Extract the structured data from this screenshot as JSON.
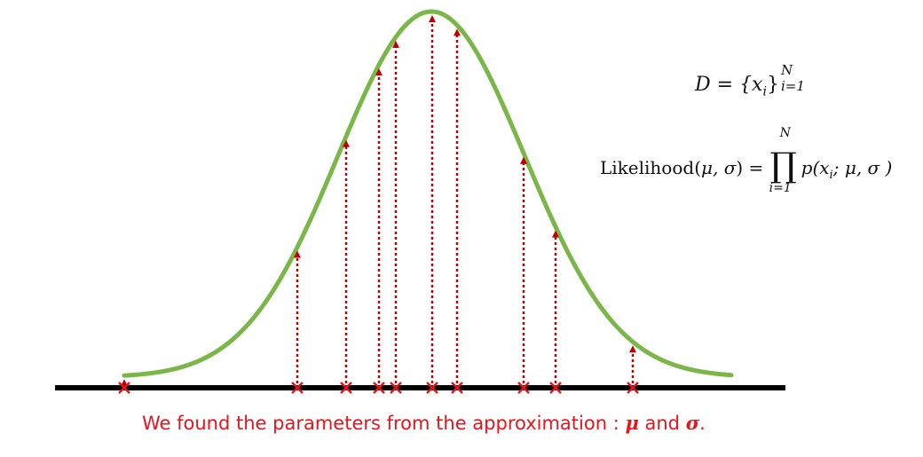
{
  "dataset": {
    "lhs": "D",
    "eq": " = ",
    "set": "{x",
    "sub_i": "i",
    "close": "}",
    "sup": "N",
    "sub": "i=1"
  },
  "likelihood": {
    "label": "Likelihood(",
    "params": "μ, σ",
    "close": ") = ",
    "prod_symbol": "∏",
    "prod_top": "N",
    "prod_bottom": "i=1",
    "term": "p(x",
    "term_sub": "i",
    "term_rest": "; μ, σ )"
  },
  "caption": {
    "text": "We found the parameters from the approximation : ",
    "mu": "μ",
    "and": " and ",
    "sigma": "σ",
    "period": "."
  },
  "colors": {
    "curve": "#7ab648",
    "axis": "#000000",
    "sample": "#e8141c",
    "arrow": "#c00000",
    "caption": "#e8141c"
  }
}
